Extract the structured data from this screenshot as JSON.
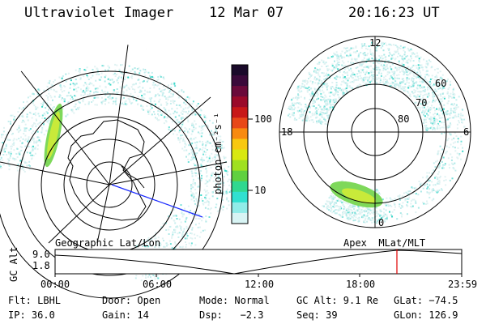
{
  "header": {
    "instrument": "Ultraviolet Imager",
    "date": "12 Mar 07",
    "time": "20:16:23 UT"
  },
  "left_panel": {
    "caption": "Geographic Lat/Lon"
  },
  "right_panel": {
    "caption": "Apex  MLat/MLT",
    "mlt_labels": {
      "top": "12",
      "left": "18",
      "right": "6",
      "bottom": "0"
    },
    "lat_labels": [
      "60",
      "70",
      "80"
    ]
  },
  "colorbar": {
    "unit_label": "photon cm⁻²s⁻¹",
    "ticks": [
      "100",
      "10"
    ],
    "colors": [
      "#1a0a2a",
      "#3a0a3a",
      "#6a0a3a",
      "#9a0a2a",
      "#c81818",
      "#e84818",
      "#f88a10",
      "#f8c810",
      "#d8e810",
      "#a0e020",
      "#60d040",
      "#30d890",
      "#30e0d0",
      "#90ece8",
      "#d8f4f4"
    ]
  },
  "timeline": {
    "y_axis_label": "GC Alt",
    "y_ticks": [
      "9.0",
      "1.8"
    ],
    "x_ticks": [
      "00:00",
      "06:00",
      "12:00",
      "18:00",
      "23:59"
    ],
    "marker_color": "#e00000"
  },
  "footer": {
    "row1": {
      "filter": "Flt: LBHL",
      "door": "Door: Open",
      "mode": "Mode: Normal",
      "gc_alt": "GC Alt: 9.1 Re",
      "glat": "GLat: −74.5"
    },
    "row2": {
      "ip": "IP: 36.0",
      "gain": "Gain: 14",
      "dsp": "Dsp:   −2.3",
      "seq": "Seq: 39",
      "glon": "GLon: 126.9"
    }
  }
}
